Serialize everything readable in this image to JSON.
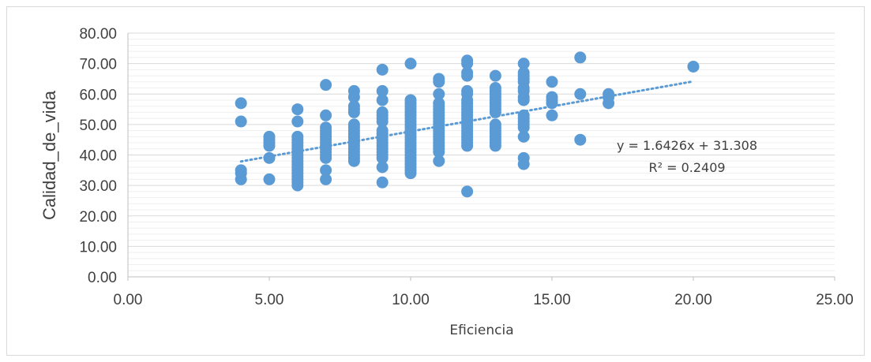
{
  "chart_data": {
    "type": "scatter",
    "xlabel": "Eficiencia",
    "ylabel": "Calidad_de_vida",
    "xlim": [
      0,
      25
    ],
    "ylim": [
      0,
      80
    ],
    "x_ticks": [
      "0.00",
      "5.00",
      "10.00",
      "15.00",
      "20.00",
      "25.00"
    ],
    "y_ticks": [
      "0.00",
      "10.00",
      "20.00",
      "30.00",
      "40.00",
      "50.00",
      "60.00",
      "70.00",
      "80.00"
    ],
    "grid": true,
    "point_color": "#5b9bd5",
    "trendline": {
      "type": "linear",
      "slope": 1.6426,
      "intercept": 31.308,
      "x_range": [
        4,
        20
      ],
      "equation": "y = 1.6426x + 31.308",
      "r2": "R² = 0.2409",
      "style": "dotted",
      "color": "#5b9bd5"
    },
    "points": [
      [
        4,
        57
      ],
      [
        4,
        51
      ],
      [
        4,
        35
      ],
      [
        4,
        34
      ],
      [
        4,
        32
      ],
      [
        5,
        46
      ],
      [
        5,
        45
      ],
      [
        5,
        44
      ],
      [
        5,
        43
      ],
      [
        5,
        39
      ],
      [
        5,
        32
      ],
      [
        6,
        55
      ],
      [
        6,
        51
      ],
      [
        6,
        46
      ],
      [
        6,
        45
      ],
      [
        6,
        44
      ],
      [
        6,
        43
      ],
      [
        6,
        42
      ],
      [
        6,
        41
      ],
      [
        6,
        40
      ],
      [
        6,
        39
      ],
      [
        6,
        38
      ],
      [
        6,
        37
      ],
      [
        6,
        36
      ],
      [
        6,
        35
      ],
      [
        6,
        34
      ],
      [
        6,
        33
      ],
      [
        6,
        32
      ],
      [
        6,
        31
      ],
      [
        6,
        30
      ],
      [
        7,
        63
      ],
      [
        7,
        53
      ],
      [
        7,
        49
      ],
      [
        7,
        48
      ],
      [
        7,
        47
      ],
      [
        7,
        46
      ],
      [
        7,
        45
      ],
      [
        7,
        44
      ],
      [
        7,
        43
      ],
      [
        7,
        42
      ],
      [
        7,
        41
      ],
      [
        7,
        40
      ],
      [
        7,
        39
      ],
      [
        7,
        35
      ],
      [
        7,
        32
      ],
      [
        8,
        61
      ],
      [
        8,
        59
      ],
      [
        8,
        56
      ],
      [
        8,
        55
      ],
      [
        8,
        54
      ],
      [
        8,
        50
      ],
      [
        8,
        49
      ],
      [
        8,
        48
      ],
      [
        8,
        47
      ],
      [
        8,
        46
      ],
      [
        8,
        45
      ],
      [
        8,
        44
      ],
      [
        8,
        43
      ],
      [
        8,
        42
      ],
      [
        8,
        41
      ],
      [
        8,
        40
      ],
      [
        8,
        39
      ],
      [
        8,
        38
      ],
      [
        9,
        68
      ],
      [
        9,
        61
      ],
      [
        9,
        58
      ],
      [
        9,
        54
      ],
      [
        9,
        53
      ],
      [
        9,
        52
      ],
      [
        9,
        51
      ],
      [
        9,
        48
      ],
      [
        9,
        47
      ],
      [
        9,
        46
      ],
      [
        9,
        45
      ],
      [
        9,
        44
      ],
      [
        9,
        43
      ],
      [
        9,
        42
      ],
      [
        9,
        41
      ],
      [
        9,
        40
      ],
      [
        9,
        39
      ],
      [
        9,
        36
      ],
      [
        9,
        31
      ],
      [
        10,
        70
      ],
      [
        10,
        58
      ],
      [
        10,
        57
      ],
      [
        10,
        56
      ],
      [
        10,
        55
      ],
      [
        10,
        54
      ],
      [
        10,
        53
      ],
      [
        10,
        52
      ],
      [
        10,
        51
      ],
      [
        10,
        50
      ],
      [
        10,
        49
      ],
      [
        10,
        48
      ],
      [
        10,
        47
      ],
      [
        10,
        46
      ],
      [
        10,
        45
      ],
      [
        10,
        44
      ],
      [
        10,
        43
      ],
      [
        10,
        42
      ],
      [
        10,
        41
      ],
      [
        10,
        40
      ],
      [
        10,
        39
      ],
      [
        10,
        38
      ],
      [
        10,
        37
      ],
      [
        10,
        36
      ],
      [
        10,
        35
      ],
      [
        10,
        34
      ],
      [
        11,
        65
      ],
      [
        11,
        64
      ],
      [
        11,
        60
      ],
      [
        11,
        57
      ],
      [
        11,
        56
      ],
      [
        11,
        55
      ],
      [
        11,
        54
      ],
      [
        11,
        53
      ],
      [
        11,
        52
      ],
      [
        11,
        51
      ],
      [
        11,
        50
      ],
      [
        11,
        49
      ],
      [
        11,
        48
      ],
      [
        11,
        47
      ],
      [
        11,
        46
      ],
      [
        11,
        45
      ],
      [
        11,
        44
      ],
      [
        11,
        43
      ],
      [
        11,
        42
      ],
      [
        11,
        41
      ],
      [
        11,
        38
      ],
      [
        12,
        71
      ],
      [
        12,
        70
      ],
      [
        12,
        67
      ],
      [
        12,
        66
      ],
      [
        12,
        61
      ],
      [
        12,
        60
      ],
      [
        12,
        58
      ],
      [
        12,
        57
      ],
      [
        12,
        56
      ],
      [
        12,
        55
      ],
      [
        12,
        54
      ],
      [
        12,
        53
      ],
      [
        12,
        52
      ],
      [
        12,
        51
      ],
      [
        12,
        50
      ],
      [
        12,
        49
      ],
      [
        12,
        48
      ],
      [
        12,
        47
      ],
      [
        12,
        46
      ],
      [
        12,
        45
      ],
      [
        12,
        44
      ],
      [
        12,
        43
      ],
      [
        12,
        28
      ],
      [
        13,
        66
      ],
      [
        13,
        62
      ],
      [
        13,
        61
      ],
      [
        13,
        60
      ],
      [
        13,
        59
      ],
      [
        13,
        58
      ],
      [
        13,
        57
      ],
      [
        13,
        56
      ],
      [
        13,
        55
      ],
      [
        13,
        54
      ],
      [
        13,
        50
      ],
      [
        13,
        49
      ],
      [
        13,
        48
      ],
      [
        13,
        47
      ],
      [
        13,
        46
      ],
      [
        13,
        45
      ],
      [
        13,
        44
      ],
      [
        13,
        43
      ],
      [
        14,
        70
      ],
      [
        14,
        67
      ],
      [
        14,
        66
      ],
      [
        14,
        65
      ],
      [
        14,
        64
      ],
      [
        14,
        62
      ],
      [
        14,
        61
      ],
      [
        14,
        59
      ],
      [
        14,
        58
      ],
      [
        14,
        53
      ],
      [
        14,
        52
      ],
      [
        14,
        51
      ],
      [
        14,
        50
      ],
      [
        14,
        49
      ],
      [
        14,
        46
      ],
      [
        14,
        39
      ],
      [
        14,
        37
      ],
      [
        15,
        64
      ],
      [
        15,
        59
      ],
      [
        15,
        58
      ],
      [
        15,
        57
      ],
      [
        15,
        53
      ],
      [
        16,
        72
      ],
      [
        16,
        60
      ],
      [
        16,
        45
      ],
      [
        17,
        60
      ],
      [
        17,
        59
      ],
      [
        17,
        57
      ],
      [
        20,
        69
      ]
    ]
  }
}
